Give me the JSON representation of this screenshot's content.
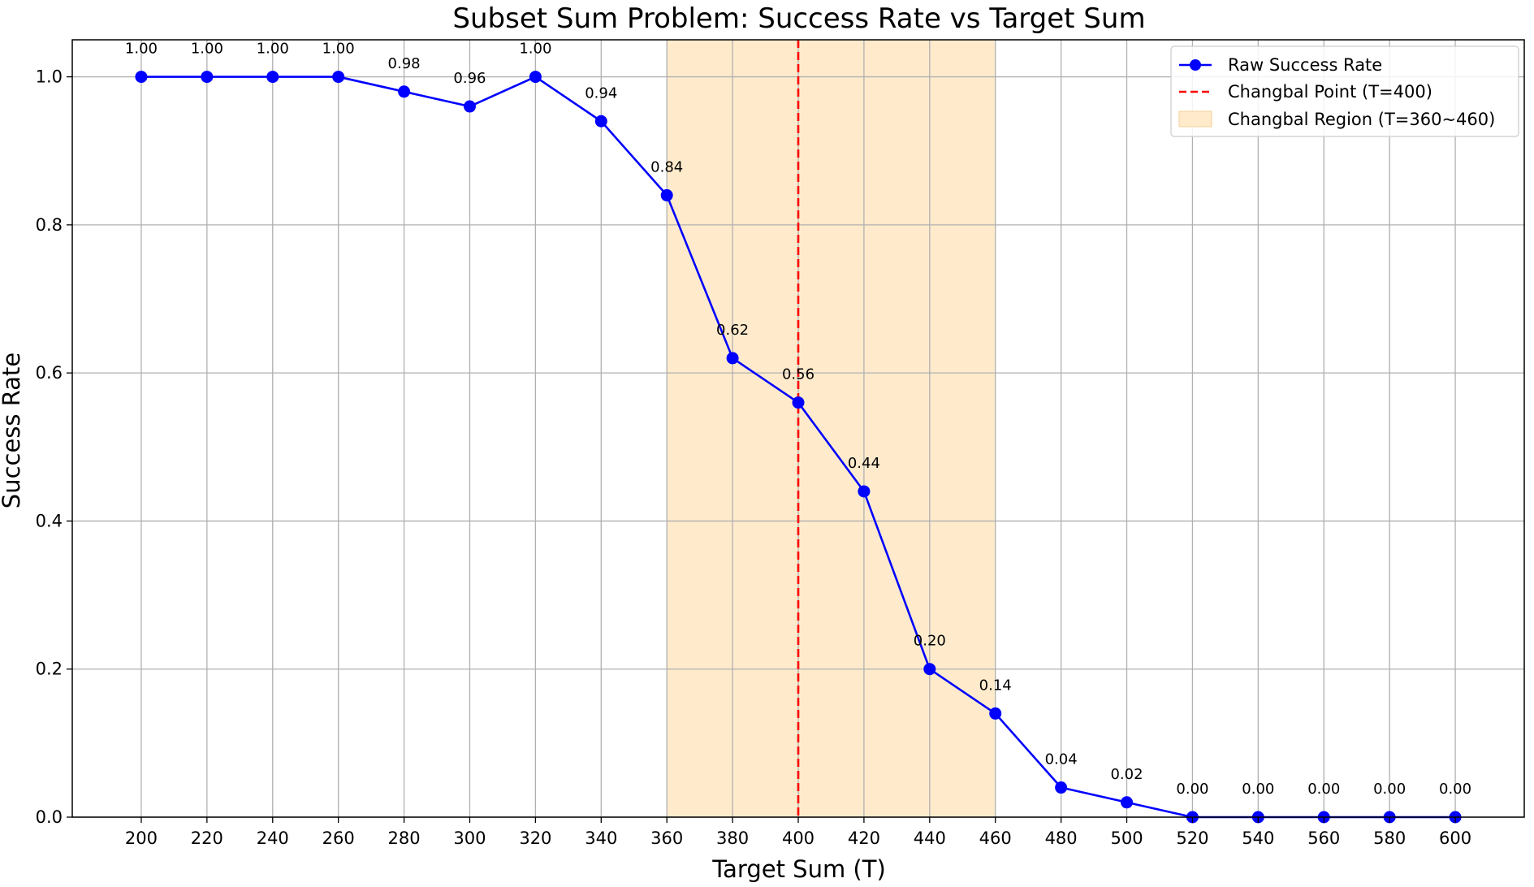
{
  "chart_data": {
    "type": "line",
    "title": "Subset Sum Problem: Success Rate vs Target Sum",
    "xlabel": "Target Sum (T)",
    "ylabel": "Success Rate",
    "x": [
      200,
      220,
      240,
      260,
      280,
      300,
      320,
      340,
      360,
      380,
      400,
      420,
      440,
      460,
      480,
      500,
      520,
      540,
      560,
      580,
      600
    ],
    "x_tick_labels": [
      "200",
      "220",
      "240",
      "260",
      "280",
      "300",
      "320",
      "340",
      "360",
      "380",
      "400",
      "420",
      "440",
      "460",
      "480",
      "500",
      "520",
      "540",
      "560",
      "580",
      "600"
    ],
    "series": [
      {
        "name": "Raw Success Rate",
        "values": [
          1.0,
          1.0,
          1.0,
          1.0,
          0.98,
          0.96,
          1.0,
          0.94,
          0.84,
          0.62,
          0.56,
          0.44,
          0.2,
          0.14,
          0.04,
          0.02,
          0.0,
          0.0,
          0.0,
          0.0,
          0.0
        ],
        "color": "#0000ff"
      }
    ],
    "data_labels": [
      "1.00",
      "1.00",
      "1.00",
      "1.00",
      "0.98",
      "0.96",
      "1.00",
      "0.94",
      "0.84",
      "0.62",
      "0.56",
      "0.44",
      "0.20",
      "0.14",
      "0.04",
      "0.02",
      "0.00",
      "0.00",
      "0.00",
      "0.00",
      "0.00"
    ],
    "vline": {
      "x": 400,
      "label": "Changbal Point (T=400)",
      "color": "#ff0000"
    },
    "region": {
      "x_start": 360,
      "x_end": 460,
      "label": "Changbal Region (T=360~460)",
      "color": "#ffebcc"
    },
    "xlim": [
      179,
      621
    ],
    "ylim": [
      0.0,
      1.05
    ],
    "y_ticks": [
      0.0,
      0.2,
      0.4,
      0.6,
      0.8,
      1.0
    ],
    "y_tick_labels": [
      "0.0",
      "0.2",
      "0.4",
      "0.6",
      "0.8",
      "1.0"
    ],
    "grid": true,
    "legend_position": "top-right"
  }
}
